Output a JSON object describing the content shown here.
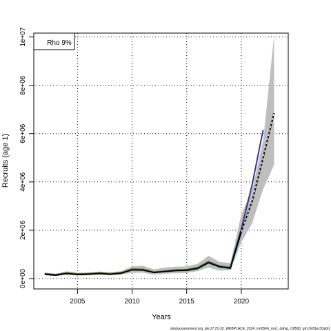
{
  "chart_data": {
    "type": "line",
    "title": "",
    "xlabel": "Years",
    "ylabel": "Recruits (age 1)",
    "xlim": [
      2001.0,
      2024.3
    ],
    "ylim": [
      -430000,
      10160000
    ],
    "x_ticks": [
      2005,
      2010,
      2015,
      2020
    ],
    "y_ticks": [
      0,
      2000000,
      4000000,
      6000000,
      8000000,
      10000000
    ],
    "y_tick_labels": [
      "0e+00",
      "2e+06",
      "4e+06",
      "6e+06",
      "8e+06",
      "1e+07"
    ],
    "grid": true,
    "legend_placement": "top-left",
    "legend_text": "Rho 9%",
    "footnote": "stockassessment.org, ple.27.21-32_WKBPLACE_2024_nm05Fb_mo1_dahig, r18563, git:c9c81ec53a0d",
    "band": {
      "color": "#bebebe",
      "x": [
        2002,
        2003,
        2004,
        2005,
        2006,
        2007,
        2008,
        2009,
        2010,
        2011,
        2012,
        2013,
        2014,
        2015,
        2016,
        2017,
        2018,
        2019,
        2020,
        2021,
        2022,
        2023
      ],
      "upper": [
        250000,
        200000,
        300000,
        240000,
        250000,
        290000,
        250000,
        310000,
        510000,
        530000,
        380000,
        450000,
        490000,
        500000,
        610000,
        940000,
        690000,
        640000,
        2650000,
        3700000,
        5700000,
        10030000
      ],
      "lower": [
        130000,
        100000,
        150000,
        120000,
        130000,
        150000,
        130000,
        160000,
        240000,
        240000,
        160000,
        200000,
        220000,
        230000,
        310000,
        460000,
        330000,
        340000,
        1500000,
        2300000,
        3700000,
        4700000
      ]
    },
    "series": [
      {
        "color": "#5a3a10",
        "dashed": false,
        "x": [
          2002,
          2003,
          2004,
          2005,
          2006,
          2007,
          2008,
          2009,
          2010,
          2011,
          2012,
          2013,
          2014,
          2015,
          2016,
          2017,
          2018,
          2019,
          2020
        ],
        "values": [
          200000,
          160000,
          230000,
          190000,
          200000,
          230000,
          200000,
          240000,
          390000,
          380000,
          270000,
          310000,
          350000,
          370000,
          450000,
          700000,
          520000,
          460000,
          2000000
        ]
      },
      {
        "color": "#2e8b57",
        "dashed": false,
        "x": [
          2002,
          2003,
          2004,
          2005,
          2006,
          2007,
          2008,
          2009,
          2010,
          2011,
          2012,
          2013,
          2014,
          2015,
          2016,
          2017,
          2018,
          2019,
          2020
        ],
        "values": [
          195000,
          155000,
          225000,
          185000,
          195000,
          225000,
          195000,
          235000,
          380000,
          370000,
          265000,
          305000,
          345000,
          360000,
          440000,
          690000,
          510000,
          450000,
          1950000
        ]
      },
      {
        "color": "#6b8e23",
        "dashed": false,
        "x": [
          2002,
          2003,
          2004,
          2005,
          2006,
          2007,
          2008,
          2009,
          2010,
          2011,
          2012,
          2013,
          2014,
          2015,
          2016,
          2017,
          2018,
          2019
        ],
        "values": [
          190000,
          150000,
          220000,
          180000,
          190000,
          220000,
          190000,
          230000,
          370000,
          360000,
          260000,
          300000,
          340000,
          350000,
          430000,
          680000,
          500000,
          440000
        ]
      },
      {
        "color": "#20b2aa",
        "dashed": false,
        "x": [
          2015,
          2016,
          2017,
          2018,
          2019,
          2020
        ],
        "values": [
          330000,
          410000,
          650000,
          480000,
          420000,
          1900000
        ]
      },
      {
        "color": "#2e3a8c",
        "dashed": false,
        "x": [
          2019,
          2020,
          2021,
          2022
        ],
        "values": [
          460000,
          2050000,
          3900000,
          6150000
        ]
      },
      {
        "color": "#000000",
        "dashed": false,
        "x": [
          2002,
          2003,
          2004,
          2005,
          2006,
          2007,
          2008,
          2009,
          2010,
          2011,
          2012,
          2013,
          2014,
          2015,
          2016,
          2017,
          2018,
          2019,
          2020,
          2021,
          2022,
          2023
        ],
        "values": [
          180000,
          140000,
          210000,
          170000,
          180000,
          210000,
          180000,
          220000,
          360000,
          350000,
          250000,
          290000,
          330000,
          340000,
          420000,
          660000,
          490000,
          430000,
          1950000,
          3200000,
          5000000,
          6850000
        ]
      },
      {
        "color": "#ffffff",
        "dashed": true,
        "x": [
          2020,
          2021,
          2022,
          2023
        ],
        "values": [
          1950000,
          3200000,
          5000000,
          6850000
        ]
      }
    ]
  }
}
